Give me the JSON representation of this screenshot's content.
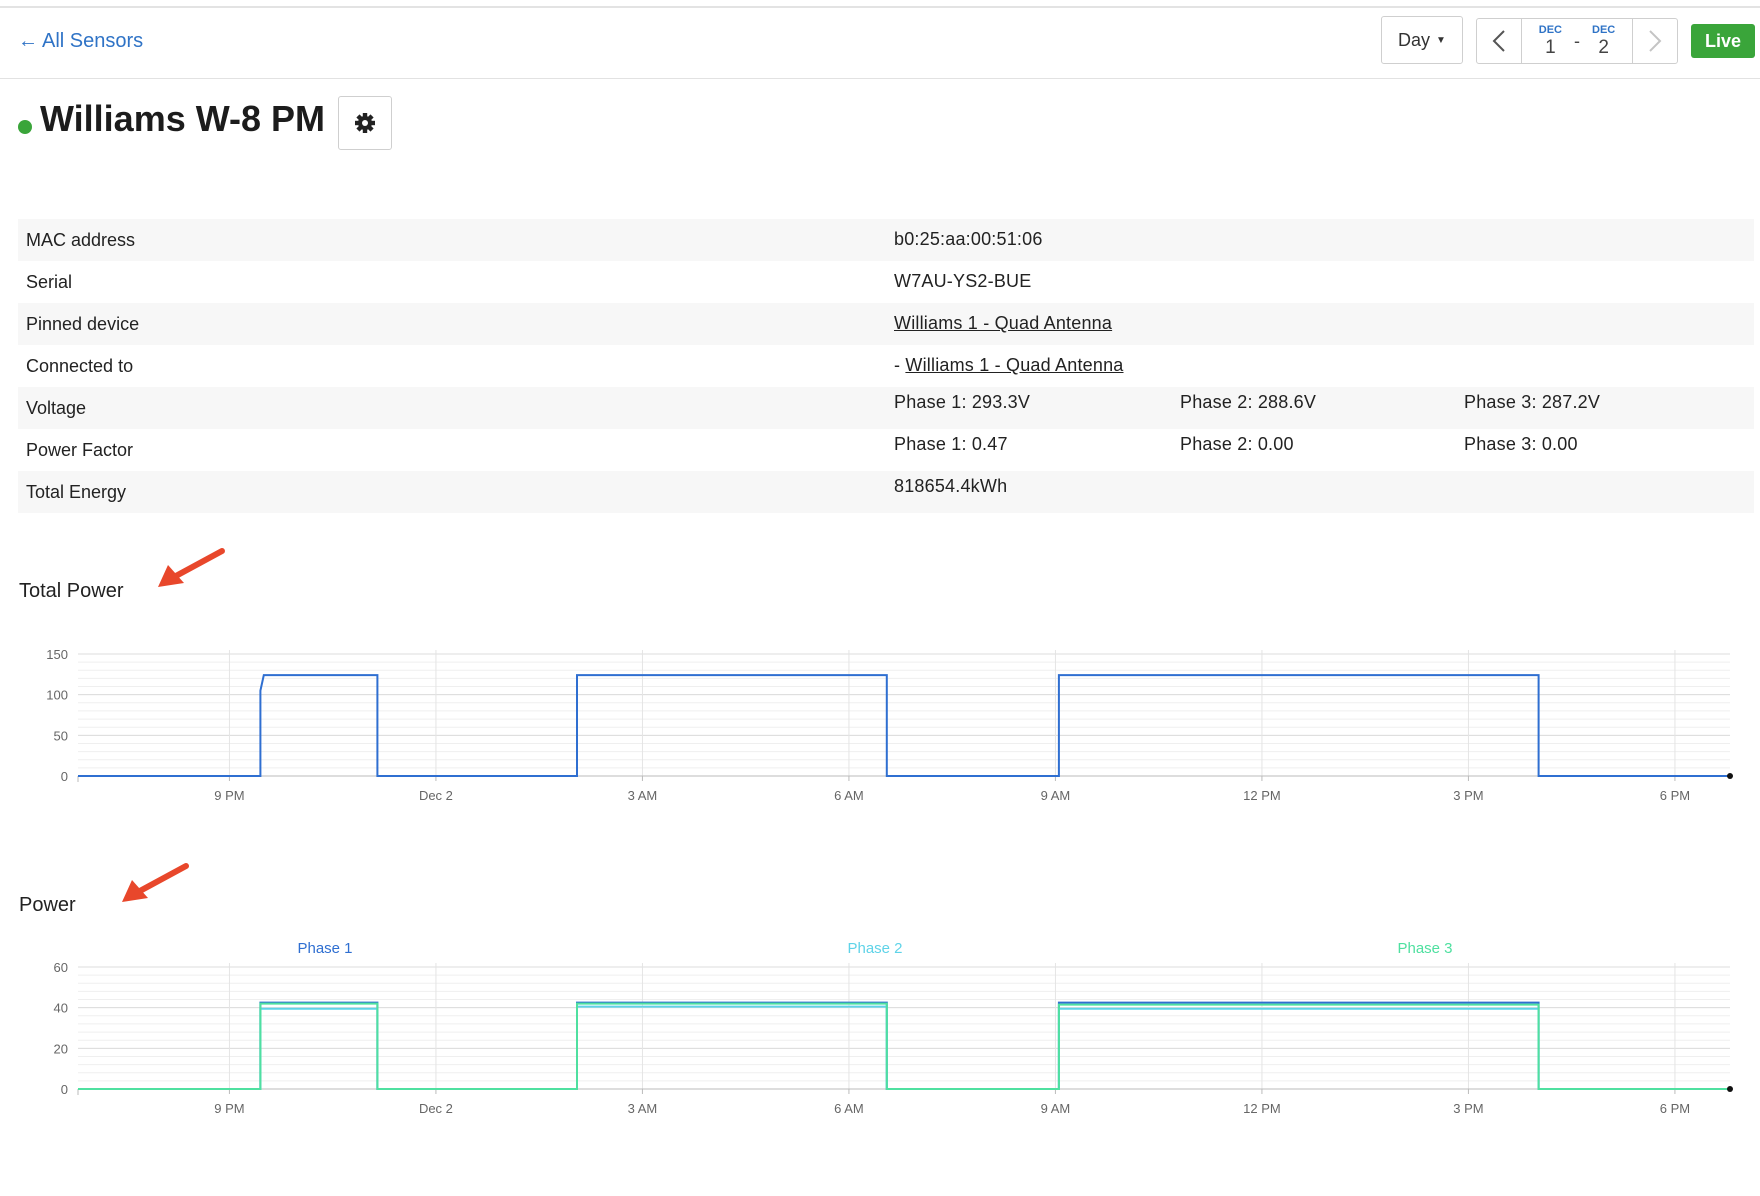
{
  "header": {
    "back_label": "All Sensors",
    "range_select": "Day",
    "date_start": {
      "month": "DEC",
      "day": "1"
    },
    "date_sep": "-",
    "date_end": {
      "month": "DEC",
      "day": "2"
    },
    "live_label": "Live"
  },
  "sensor": {
    "name": "Williams W-8 PM",
    "status_color": "#3aa53a"
  },
  "info": {
    "mac_label": "MAC address",
    "mac_value": "b0:25:aa:00:51:06",
    "serial_label": "Serial",
    "serial_value": "W7AU-YS2-BUE",
    "pinned_label": "Pinned device",
    "pinned_value": "Williams 1 - Quad Antenna",
    "connected_label": "Connected to",
    "connected_prefix": "-",
    "connected_value": "Williams 1 - Quad Antenna",
    "voltage_label": "Voltage",
    "voltage_p1": "Phase 1: 293.3V",
    "voltage_p2": "Phase 2: 288.6V",
    "voltage_p3": "Phase 3: 287.2V",
    "pf_label": "Power Factor",
    "pf_p1": "Phase 1: 0.47",
    "pf_p2": "Phase 2: 0.00",
    "pf_p3": "Phase 3: 0.00",
    "energy_label": "Total Energy",
    "energy_value": "818654.4kWh"
  },
  "sections": {
    "total_power_title": "Total Power",
    "power_title": "Power"
  },
  "annotation_color": "#e8472b",
  "chart_data": [
    {
      "type": "line",
      "title": "Total Power",
      "x_unit": "hours since 6 PM Dec 1",
      "x_ticks": [
        {
          "x": 3,
          "label": "9 PM"
        },
        {
          "x": 6,
          "label": "Dec 2"
        },
        {
          "x": 9,
          "label": "3 AM"
        },
        {
          "x": 12,
          "label": "6 AM"
        },
        {
          "x": 15,
          "label": "9 AM"
        },
        {
          "x": 18,
          "label": "12 PM"
        },
        {
          "x": 21,
          "label": "3 PM"
        },
        {
          "x": 24,
          "label": "6 PM"
        }
      ],
      "xlim": [
        0.8,
        24.8
      ],
      "ylim": [
        0,
        150
      ],
      "yticks": [
        0,
        50,
        100,
        150
      ],
      "grid": true,
      "series": [
        {
          "color": "#2f6fd1",
          "points": [
            [
              0.8,
              0
            ],
            [
              3.45,
              0
            ],
            [
              3.45,
              105
            ],
            [
              3.5,
              124
            ],
            [
              5.15,
              124
            ],
            [
              5.15,
              0
            ],
            [
              8.05,
              0
            ],
            [
              8.05,
              124
            ],
            [
              12.55,
              124
            ],
            [
              12.55,
              0
            ],
            [
              15.05,
              0
            ],
            [
              15.05,
              124
            ],
            [
              22.02,
              124
            ],
            [
              22.02,
              0
            ],
            [
              24.8,
              0
            ]
          ]
        }
      ]
    },
    {
      "type": "line",
      "title": "Power",
      "x_unit": "hours since 6 PM Dec 1",
      "x_ticks": [
        {
          "x": 3,
          "label": "9 PM"
        },
        {
          "x": 6,
          "label": "Dec 2"
        },
        {
          "x": 9,
          "label": "3 AM"
        },
        {
          "x": 12,
          "label": "6 AM"
        },
        {
          "x": 15,
          "label": "9 AM"
        },
        {
          "x": 18,
          "label": "12 PM"
        },
        {
          "x": 21,
          "label": "3 PM"
        },
        {
          "x": 24,
          "label": "6 PM"
        }
      ],
      "xlim": [
        0.8,
        24.8
      ],
      "ylim": [
        0,
        60
      ],
      "yticks": [
        0,
        20,
        40,
        60
      ],
      "grid": true,
      "legend": "top",
      "series": [
        {
          "name": "Phase 1",
          "color": "#2f6fd1",
          "points": [
            [
              0.8,
              0
            ],
            [
              3.45,
              0
            ],
            [
              3.45,
              42.5
            ],
            [
              5.15,
              42.5
            ],
            [
              5.15,
              0
            ],
            [
              8.05,
              0
            ],
            [
              8.05,
              42.5
            ],
            [
              12.55,
              42.5
            ],
            [
              12.55,
              0
            ],
            [
              15.05,
              0
            ],
            [
              15.05,
              42.5
            ],
            [
              22.02,
              42.5
            ],
            [
              22.02,
              0
            ],
            [
              24.8,
              0
            ]
          ]
        },
        {
          "name": "Phase 2",
          "color": "#5fd3e8",
          "points": [
            [
              0.8,
              0
            ],
            [
              3.45,
              0
            ],
            [
              3.45,
              39.5
            ],
            [
              5.15,
              39.5
            ],
            [
              5.15,
              0
            ],
            [
              8.05,
              0
            ],
            [
              8.05,
              40.5
            ],
            [
              12.55,
              40.5
            ],
            [
              12.55,
              0
            ],
            [
              15.05,
              0
            ],
            [
              15.05,
              39.5
            ],
            [
              22.02,
              39.5
            ],
            [
              22.02,
              0
            ],
            [
              24.8,
              0
            ]
          ]
        },
        {
          "name": "Phase 3",
          "color": "#4fe0a0",
          "points": [
            [
              0.8,
              0
            ],
            [
              3.45,
              0
            ],
            [
              3.45,
              42
            ],
            [
              5.15,
              42
            ],
            [
              5.15,
              0
            ],
            [
              8.05,
              0
            ],
            [
              8.05,
              42
            ],
            [
              12.55,
              42
            ],
            [
              12.55,
              0
            ],
            [
              15.05,
              0
            ],
            [
              15.05,
              41.5
            ],
            [
              22.02,
              41.5
            ],
            [
              22.02,
              0
            ],
            [
              24.8,
              0
            ]
          ]
        }
      ]
    }
  ]
}
